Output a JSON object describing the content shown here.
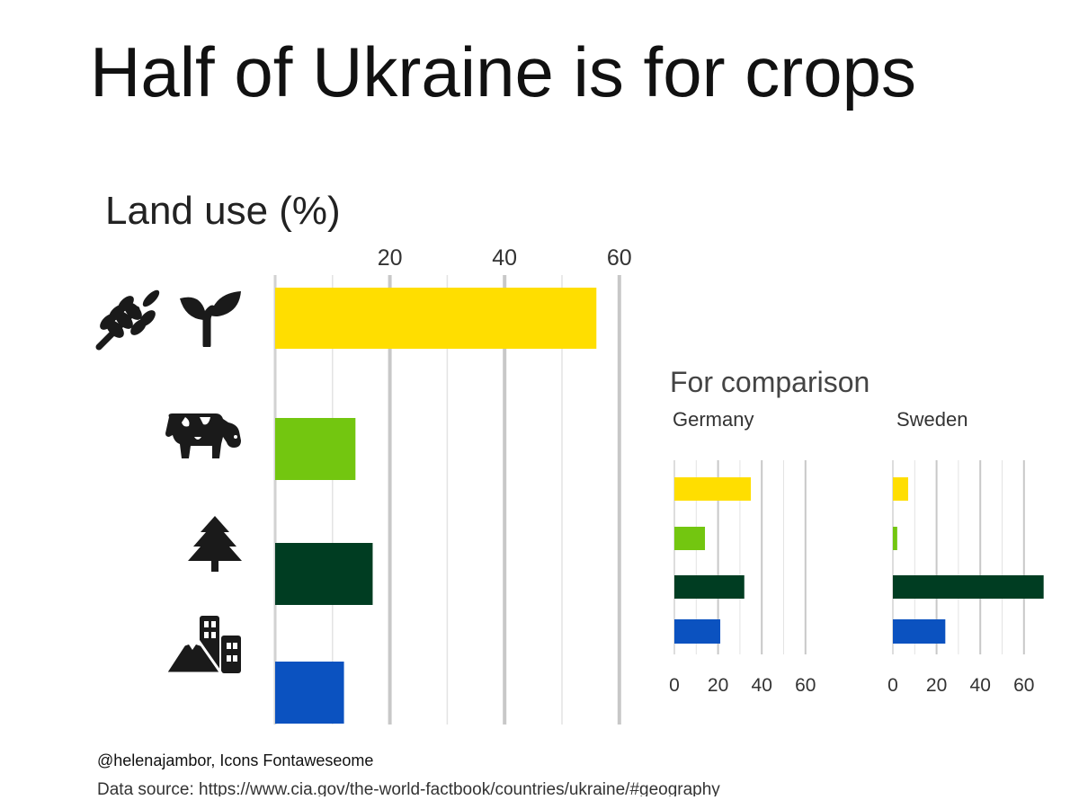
{
  "page": {
    "title": "Half of Ukraine is for crops",
    "credit": "@helenajambor, Icons Fontaweseome",
    "source": "Data source: https://www.cia.gov/the-world-factbook/countries/ukraine/#geography"
  },
  "icons": [
    "wheat-icon",
    "seedling-icon",
    "cow-icon",
    "tree-icon",
    "mountain-city-icon"
  ],
  "chart_data": [
    {
      "type": "bar",
      "orientation": "horizontal",
      "country": "Ukraine",
      "title": "Land use (%)",
      "ticks": [
        20,
        40,
        60
      ],
      "xlim": [
        0,
        60
      ],
      "grid": true,
      "series": [
        {
          "value": 56,
          "color": "#ffde00"
        },
        {
          "value": 14,
          "color": "#73c610"
        },
        {
          "value": 17,
          "color": "#003d22"
        },
        {
          "value": 12,
          "color": "#0b52c0"
        }
      ]
    },
    {
      "type": "bar",
      "orientation": "horizontal",
      "group_title": "For comparison",
      "title": "Germany",
      "ticks": [
        0,
        20,
        40,
        60
      ],
      "xlim": [
        0,
        60
      ],
      "grid": true,
      "series": [
        {
          "value": 35,
          "color": "#ffde00"
        },
        {
          "value": 14,
          "color": "#73c610"
        },
        {
          "value": 32,
          "color": "#003d22"
        },
        {
          "value": 21,
          "color": "#0b52c0"
        }
      ]
    },
    {
      "type": "bar",
      "orientation": "horizontal",
      "group_title": "For comparison",
      "title": "Sweden",
      "ticks": [
        0,
        20,
        40,
        60
      ],
      "xlim": [
        0,
        60
      ],
      "grid": true,
      "series": [
        {
          "value": 7,
          "color": "#ffde00"
        },
        {
          "value": 2,
          "color": "#73c610"
        },
        {
          "value": 69,
          "color": "#003d22"
        },
        {
          "value": 24,
          "color": "#0b52c0"
        }
      ]
    }
  ]
}
